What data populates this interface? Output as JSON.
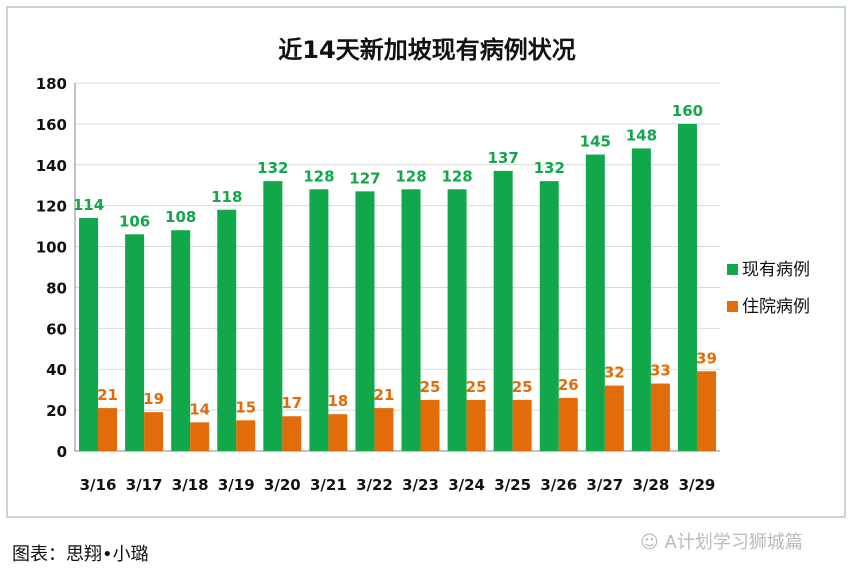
{
  "chart_data": {
    "type": "bar",
    "title": "近14天新加坡现有病例状况",
    "categories": [
      "3/16",
      "3/17",
      "3/18",
      "3/19",
      "3/20",
      "3/21",
      "3/22",
      "3/23",
      "3/24",
      "3/25",
      "3/26",
      "3/27",
      "3/28",
      "3/29"
    ],
    "series": [
      {
        "name": "现有病例",
        "color": "#10a84a",
        "values": [
          114,
          106,
          108,
          118,
          132,
          128,
          127,
          128,
          128,
          137,
          132,
          145,
          148,
          160
        ]
      },
      {
        "name": "住院病例",
        "color": "#e36c0a",
        "values": [
          21,
          19,
          14,
          15,
          17,
          18,
          21,
          25,
          25,
          25,
          26,
          32,
          33,
          39
        ]
      }
    ],
    "yticks": [
      0,
      20,
      40,
      60,
      80,
      100,
      120,
      140,
      160,
      180
    ],
    "ylim": [
      0,
      180
    ],
    "grid": true,
    "legend": "right"
  },
  "caption": "图表：思翔•小璐",
  "watermark": "A计划学习狮城篇"
}
